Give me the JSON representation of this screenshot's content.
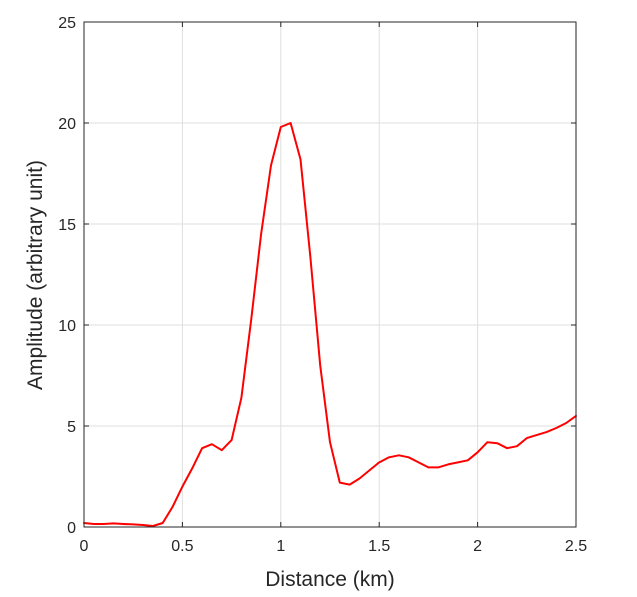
{
  "chart_data": {
    "type": "line",
    "title": "",
    "xlabel": "Distance (km)",
    "ylabel": "Amplitude (arbitrary unit)",
    "xlim": [
      0,
      2.5
    ],
    "ylim": [
      0,
      25
    ],
    "xticks": [
      0,
      0.5,
      1,
      1.5,
      2,
      2.5
    ],
    "xtick_labels": [
      "0",
      "0.5",
      "1",
      "1.5",
      "2",
      "2.5"
    ],
    "yticks": [
      0,
      5,
      10,
      15,
      20,
      25
    ],
    "ytick_labels": [
      "0",
      "5",
      "10",
      "15",
      "20",
      "25"
    ],
    "grid": true,
    "series": [
      {
        "color": "#ff0000",
        "x": [
          0,
          0.05,
          0.1,
          0.15,
          0.2,
          0.25,
          0.3,
          0.35,
          0.4,
          0.45,
          0.5,
          0.55,
          0.6,
          0.65,
          0.7,
          0.75,
          0.8,
          0.85,
          0.9,
          0.95,
          1.0,
          1.05,
          1.1,
          1.15,
          1.2,
          1.25,
          1.3,
          1.35,
          1.4,
          1.45,
          1.5,
          1.55,
          1.6,
          1.65,
          1.7,
          1.75,
          1.8,
          1.85,
          1.9,
          1.95,
          2.0,
          2.05,
          2.1,
          2.15,
          2.2,
          2.25,
          2.3,
          2.35,
          2.4,
          2.45,
          2.5
        ],
        "y": [
          0.2,
          0.15,
          0.15,
          0.18,
          0.15,
          0.13,
          0.1,
          0.05,
          0.2,
          1.0,
          2.0,
          2.9,
          3.9,
          4.1,
          3.8,
          4.3,
          6.4,
          10.3,
          14.5,
          17.9,
          19.8,
          20.0,
          18.2,
          13.4,
          8.0,
          4.2,
          2.2,
          2.1,
          2.4,
          2.8,
          3.2,
          3.45,
          3.55,
          3.45,
          3.2,
          2.95,
          2.95,
          3.1,
          3.2,
          3.3,
          3.7,
          4.2,
          4.15,
          3.9,
          4.0,
          4.4,
          4.55,
          4.7,
          4.9,
          5.15,
          5.5
        ]
      }
    ]
  },
  "colors": {
    "axis": "#262626",
    "grid": "#dfdfdf",
    "line": "#ff0000",
    "background": "#ffffff"
  }
}
